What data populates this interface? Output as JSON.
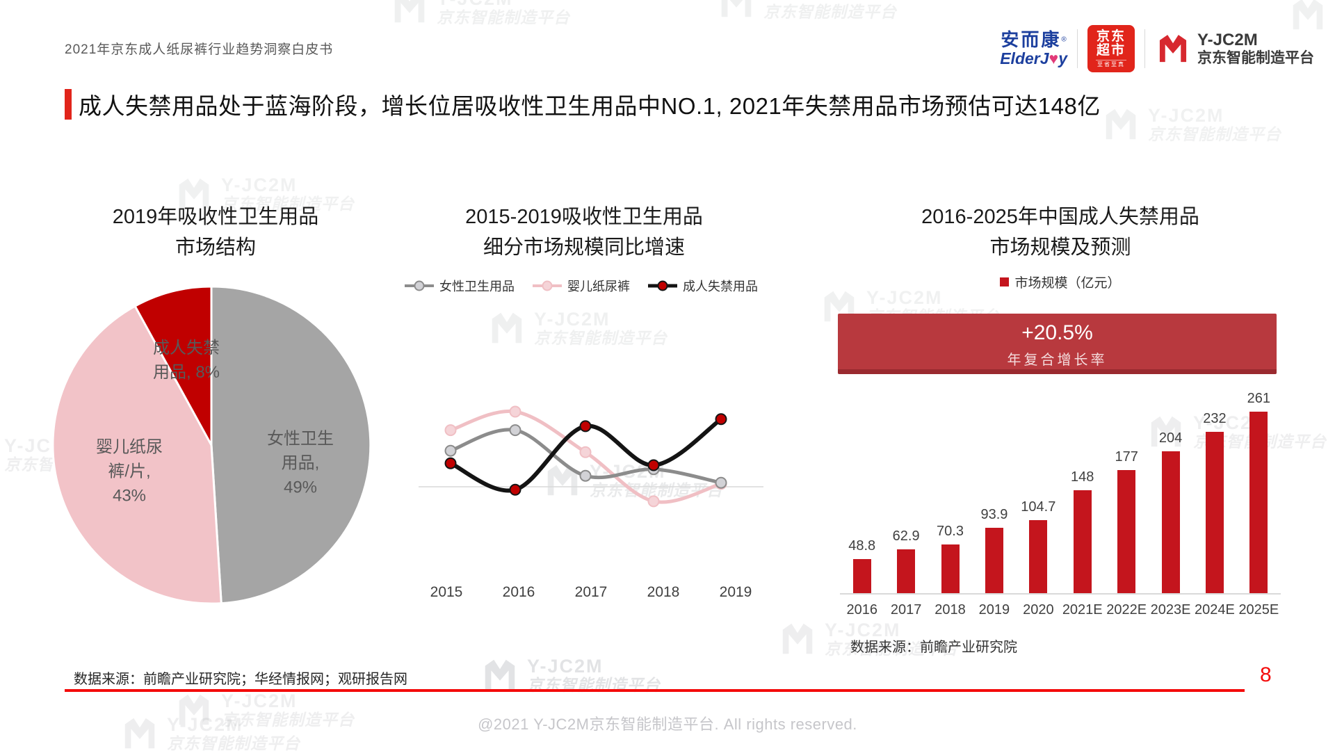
{
  "page": {
    "doc_title": "2021年京东成人纸尿裤行业趋势洞察白皮书",
    "slide_title": "成人失禁用品处于蓝海阶段，增长位居吸收性卫生用品中NO.1, 2021年失禁用品市场预估可达148亿",
    "page_number": "8",
    "copyright": "@2021 Y-JC2M京东智能制造平台. All rights reserved.",
    "source_left": "数据来源：前瞻产业研究院；华经情报网；观研报告网",
    "accent_red": "#e1251b"
  },
  "logos": {
    "elderjoy": {
      "cn": "安而康",
      "reg": "®",
      "en_pre": "ElderJ",
      "en_heart": "♥",
      "en_post": "y"
    },
    "jd_market": {
      "line1": "京东",
      "line2": "超市",
      "tagline": "至省至真"
    },
    "yjc2m": {
      "name": "Y-JC2M",
      "subtitle": "京东智能制造平台"
    }
  },
  "watermark": {
    "line1": "Y-JC2M",
    "line2": "京东智能制造平台"
  },
  "chart_data": [
    {
      "id": "pie",
      "type": "pie",
      "title_lines": [
        "2019年吸收性卫生用品",
        "市场结构"
      ],
      "slices": [
        {
          "label": "女性卫生用品",
          "value": 49,
          "color": "#a5a5a5",
          "label_lines": [
            "女性卫生",
            "用品,",
            "49%"
          ]
        },
        {
          "label": "婴儿纸尿裤/片",
          "value": 43,
          "color": "#f2c3c8",
          "label_lines": [
            "婴儿纸尿",
            "裤/片,",
            "43%"
          ]
        },
        {
          "label": "成人失禁用品",
          "value": 8,
          "color": "#c00000",
          "label_lines": [
            "成人失禁",
            "用品, 8%"
          ]
        }
      ],
      "label_color": "#595959",
      "legend_position": "inside"
    },
    {
      "id": "line",
      "type": "line",
      "title_lines": [
        "2015-2019吸收性卫生用品",
        "细分市场规模同比增速"
      ],
      "x": [
        "2015",
        "2016",
        "2017",
        "2018",
        "2019"
      ],
      "series": [
        {
          "name": "女性卫生用品",
          "color": "#8c8c8c",
          "marker": "#d2d2d6",
          "values": [
            7.2,
            11.3,
            2.2,
            3.5,
            0.8
          ]
        },
        {
          "name": "婴儿纸尿裤",
          "color": "#f0bfc4",
          "marker": "#f5d4d8",
          "values": [
            11.3,
            15.0,
            6.9,
            -2.9,
            0.6
          ]
        },
        {
          "name": "成人失禁用品",
          "color": "#141414",
          "marker": "#c00000",
          "values": [
            4.7,
            -0.6,
            12.1,
            4.3,
            13.5
          ]
        }
      ],
      "unit": "%",
      "y_axis": "unlabeled, zero baseline shown; values estimated from plot",
      "legend_position": "top"
    },
    {
      "id": "bar",
      "type": "bar",
      "title_lines": [
        "2016-2025年中国成人失禁用品",
        "市场规模及预测"
      ],
      "legend": "市场规模（亿元）",
      "categories": [
        "2016",
        "2017",
        "2018",
        "2019",
        "2020",
        "2021E",
        "2022E",
        "2023E",
        "2024E",
        "2025E"
      ],
      "values": [
        48.8,
        62.9,
        70.3,
        93.9,
        104.7,
        148,
        177,
        204,
        232,
        261
      ],
      "ylabel": "亿元",
      "ylim": [
        0,
        280
      ],
      "bar_color": "#c4151d",
      "banner": {
        "headline": "+20.5%",
        "subline": "年复合增长率",
        "bg": "#b8393e"
      },
      "source": "数据来源：前瞻产业研究院"
    }
  ]
}
